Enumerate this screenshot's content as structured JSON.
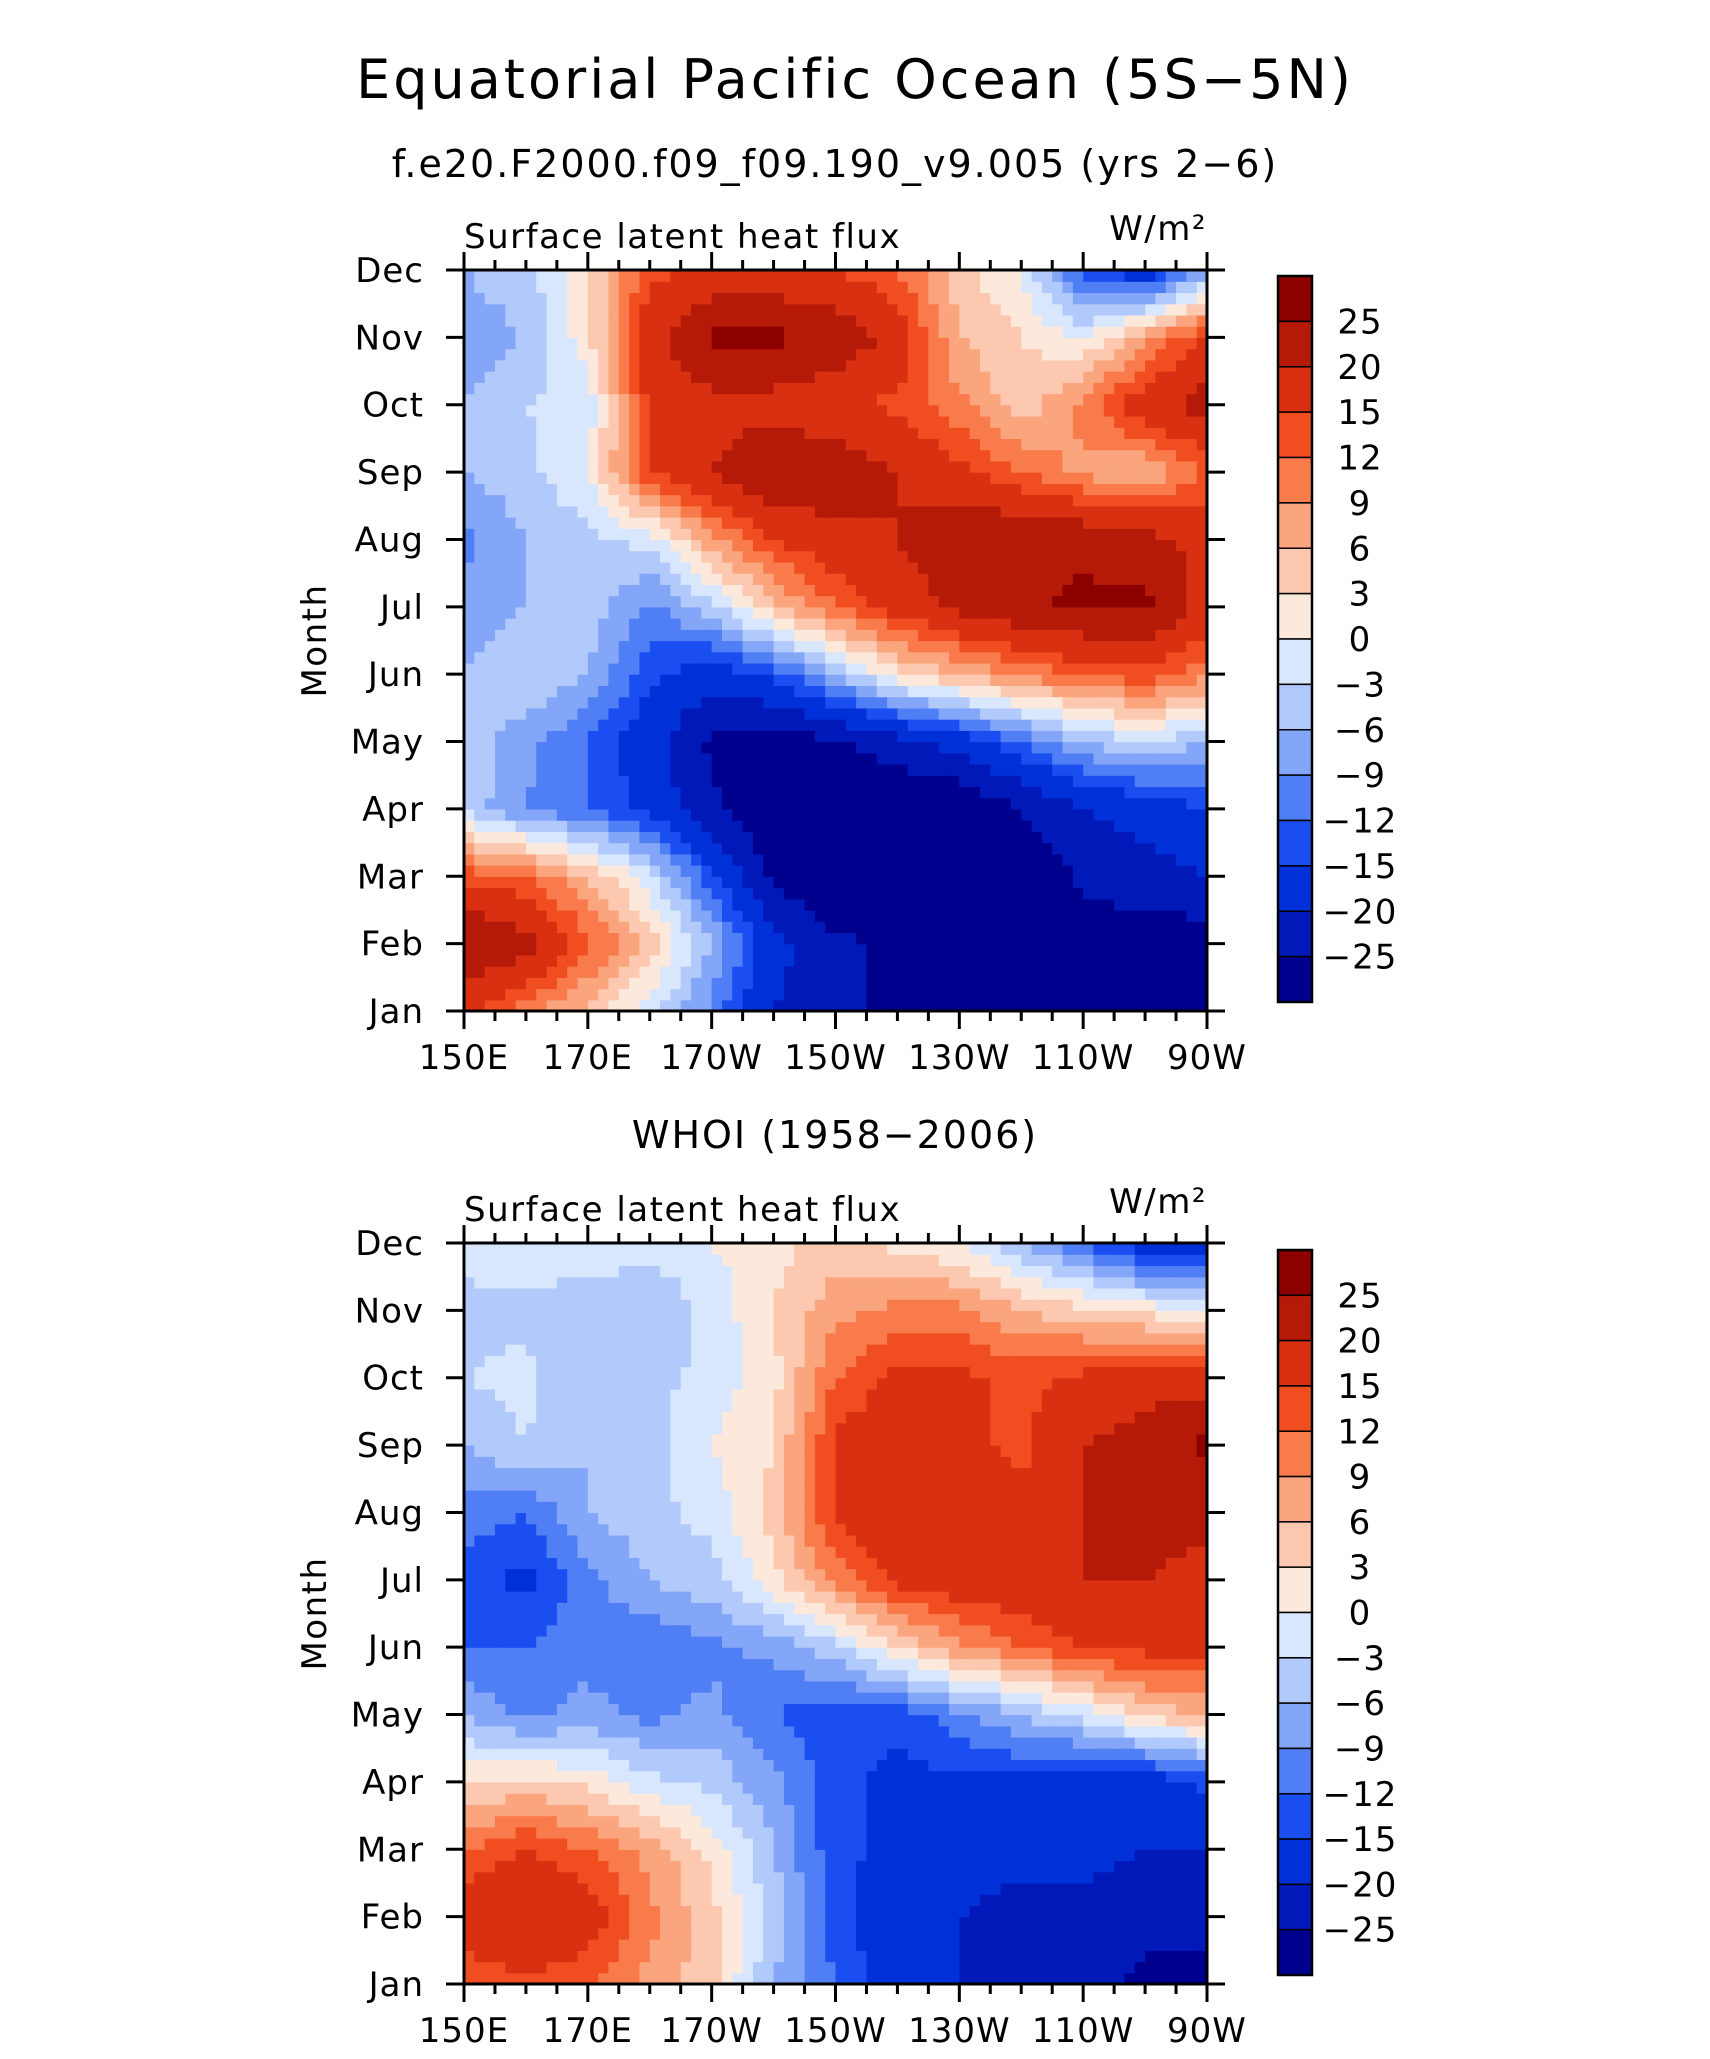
{
  "chart_data": [
    {
      "type": "heatmap",
      "title": "Equatorial Pacific Ocean (5S−5N)",
      "subtitle": "f.e20.F2000.f09_f09.190_v9.005 (yrs 2−6)",
      "variable": "Surface latent heat flux",
      "units": "W/m²",
      "xlabel": "",
      "ylabel": "Month",
      "x_ticks": [
        "150E",
        "170E",
        "170W",
        "150W",
        "130W",
        "110W",
        "90W"
      ],
      "x_values": [
        150,
        170,
        190,
        210,
        230,
        250,
        270
      ],
      "xlim": [
        150,
        270
      ],
      "y_ticks": [
        "Jan",
        "Feb",
        "Mar",
        "Apr",
        "May",
        "Jun",
        "Jul",
        "Aug",
        "Sep",
        "Oct",
        "Nov",
        "Dec"
      ],
      "colorbar_labels": [
        "25",
        "20",
        "15",
        "12",
        "9",
        "6",
        "3",
        "0",
        "−3",
        "−6",
        "−9",
        "−12",
        "−15",
        "−20",
        "−25"
      ],
      "contour_levels": [
        -25,
        -20,
        -15,
        -12,
        -9,
        -6,
        -3,
        0,
        3,
        6,
        9,
        12,
        15,
        20,
        25
      ],
      "colors": [
        "#00008f",
        "#0019b8",
        "#0030d8",
        "#1a4ef0",
        "#4f7ef5",
        "#83a6f8",
        "#b1c9fb",
        "#d8e7fd",
        "#fde9dc",
        "#fcc8af",
        "#fba57e",
        "#f97b4c",
        "#f04e20",
        "#d83010",
        "#b51a08",
        "#8c0000"
      ],
      "grid_columns": [
        "150E",
        "160E",
        "170E",
        "180",
        "170W",
        "160W",
        "150W",
        "140W",
        "130W",
        "120W",
        "110W",
        "100W",
        "90W"
      ],
      "grid_rows": [
        "Jan",
        "Feb",
        "Mar",
        "Apr",
        "May",
        "Jun",
        "Jul",
        "Aug",
        "Sep",
        "Oct",
        "Nov",
        "Dec"
      ],
      "values": [
        [
          16,
          10,
          5,
          -2,
          -10,
          -20,
          -24,
          -26,
          -28,
          -28,
          -30,
          -30,
          -30
        ],
        [
          26,
          22,
          13,
          5,
          -6,
          -18,
          -24,
          -26,
          -28,
          -28,
          -28,
          -28,
          -28
        ],
        [
          14,
          12,
          6,
          -2,
          -14,
          -26,
          -30,
          -30,
          -30,
          -30,
          -24,
          -22,
          -20
        ],
        [
          -4,
          -9,
          -12,
          -16,
          -24,
          -30,
          -30,
          -30,
          -30,
          -25,
          -20,
          -18,
          -15
        ],
        [
          -4,
          -8,
          -12,
          -18,
          -26,
          -28,
          -26,
          -22,
          -18,
          -12,
          -6,
          -3,
          -6
        ],
        [
          -6,
          -3,
          -6,
          -14,
          -18,
          -14,
          -6,
          2,
          6,
          10,
          12,
          14,
          10
        ],
        [
          -8,
          -6,
          -4,
          -10,
          -4,
          5,
          12,
          17,
          21,
          24,
          26,
          26,
          18
        ],
        [
          -10,
          -6,
          -4,
          -2,
          8,
          15,
          18,
          20,
          24,
          25,
          24,
          22,
          18
        ],
        [
          -6,
          -4,
          0,
          15,
          20,
          25,
          24,
          20,
          16,
          12,
          8,
          6,
          12
        ],
        [
          -6,
          -3,
          -2,
          16,
          18,
          18,
          16,
          14,
          10,
          4,
          10,
          18,
          22
        ],
        [
          -8,
          -6,
          2,
          18,
          26,
          26,
          24,
          18,
          6,
          3,
          0,
          8,
          16
        ],
        [
          -6,
          -4,
          2,
          14,
          16,
          16,
          15,
          12,
          4,
          0,
          -14,
          -18,
          -8
        ]
      ]
    },
    {
      "type": "heatmap",
      "title": "WHOI (1958−2006)",
      "variable": "Surface latent heat flux",
      "units": "W/m²",
      "xlabel": "",
      "ylabel": "Month",
      "x_ticks": [
        "150E",
        "170E",
        "170W",
        "150W",
        "130W",
        "110W",
        "90W"
      ],
      "x_values": [
        150,
        170,
        190,
        210,
        230,
        250,
        270
      ],
      "xlim": [
        150,
        270
      ],
      "y_ticks": [
        "Jan",
        "Feb",
        "Mar",
        "Apr",
        "May",
        "Jun",
        "Jul",
        "Aug",
        "Sep",
        "Oct",
        "Nov",
        "Dec"
      ],
      "colorbar_labels": [
        "25",
        "20",
        "15",
        "12",
        "9",
        "6",
        "3",
        "0",
        "−3",
        "−6",
        "−9",
        "−12",
        "−15",
        "−20",
        "−25"
      ],
      "contour_levels": [
        -25,
        -20,
        -15,
        -12,
        -9,
        -6,
        -3,
        0,
        3,
        6,
        9,
        12,
        15,
        20,
        25
      ],
      "colors": [
        "#00008f",
        "#0019b8",
        "#0030d8",
        "#1a4ef0",
        "#4f7ef5",
        "#83a6f8",
        "#b1c9fb",
        "#d8e7fd",
        "#fde9dc",
        "#fcc8af",
        "#fba57e",
        "#f97b4c",
        "#f04e20",
        "#d83010",
        "#b51a08",
        "#8c0000"
      ],
      "grid_columns": [
        "150E",
        "160E",
        "170E",
        "180",
        "170W",
        "160W",
        "150W",
        "140W",
        "130W",
        "120W",
        "110W",
        "100W",
        "90W"
      ],
      "grid_rows": [
        "Jan",
        "Feb",
        "Mar",
        "Apr",
        "May",
        "Jun",
        "Jul",
        "Aug",
        "Sep",
        "Oct",
        "Nov",
        "Dec"
      ],
      "values": [
        [
          12,
          14,
          12,
          8,
          4,
          -6,
          -12,
          -18,
          -20,
          -22,
          -24,
          -26,
          -26
        ],
        [
          18,
          20,
          18,
          10,
          4,
          -4,
          -14,
          -18,
          -20,
          -22,
          -22,
          -24,
          -24
        ],
        [
          12,
          15,
          12,
          8,
          2,
          -6,
          -14,
          -16,
          -18,
          -18,
          -18,
          -20,
          -20
        ],
        [
          2,
          4,
          2,
          -2,
          -4,
          -8,
          -14,
          -16,
          -16,
          -16,
          -18,
          -18,
          -14
        ],
        [
          -6,
          -10,
          -8,
          -10,
          -8,
          -12,
          -14,
          -14,
          -10,
          -6,
          -2,
          4,
          6
        ],
        [
          -12,
          -12,
          -10,
          -12,
          -10,
          -8,
          -4,
          3,
          8,
          12,
          15,
          16,
          16
        ],
        [
          -14,
          -16,
          -10,
          -6,
          -4,
          2,
          10,
          16,
          18,
          18,
          20,
          20,
          18
        ],
        [
          -10,
          -12,
          -6,
          -4,
          -2,
          4,
          16,
          20,
          20,
          16,
          20,
          22,
          22
        ],
        [
          -6,
          -3,
          -6,
          -4,
          0,
          3,
          16,
          18,
          16,
          14,
          20,
          22,
          26
        ],
        [
          -3,
          -2,
          -6,
          -4,
          -2,
          2,
          12,
          16,
          16,
          14,
          16,
          18,
          18
        ],
        [
          -4,
          -4,
          -6,
          -6,
          -2,
          3,
          8,
          10,
          10,
          6,
          4,
          2,
          0
        ],
        [
          -2,
          0,
          0,
          -2,
          0,
          2,
          4,
          2,
          0,
          -6,
          -12,
          -18,
          -20
        ]
      ]
    }
  ]
}
